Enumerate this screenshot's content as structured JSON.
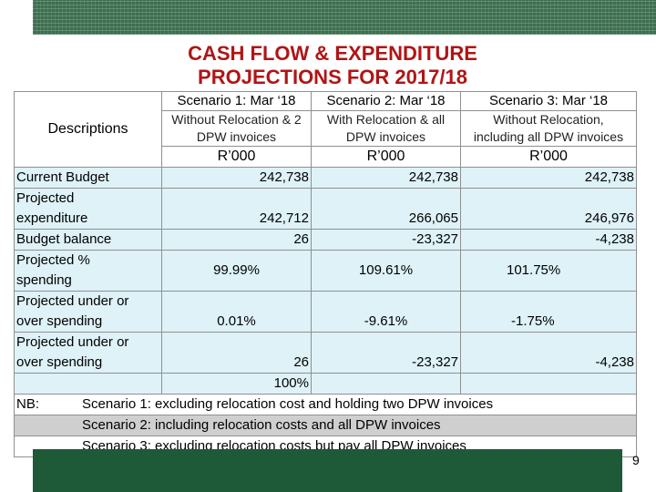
{
  "title_line1": "CASH FLOW & EXPENDITURE",
  "title_line2": "PROJECTIONS FOR 2017/18",
  "descriptions_label": "Descriptions",
  "scenarios": [
    {
      "name": "Scenario 1: Mar ‘18",
      "sub1": "Without Relocation & 2",
      "sub2": "DPW invoices",
      "unit": "R’000"
    },
    {
      "name": "Scenario 2: Mar ‘18",
      "sub1": "With Relocation & all",
      "sub2": "DPW invoices",
      "unit": "R’000"
    },
    {
      "name": "Scenario 3: Mar ‘18",
      "sub1": "Without Relocation,",
      "sub2": "including all DPW invoices",
      "unit": "R’000"
    }
  ],
  "rows": {
    "current_budget": {
      "label": "Current Budget",
      "v1": "242,738",
      "v2": "242,738",
      "v3": "242,738"
    },
    "projected_expenditure": {
      "label1": "Projected",
      "label2": "expenditure",
      "v1": "242,712",
      "v2": "266,065",
      "v3": "246,976"
    },
    "budget_balance": {
      "label": "Budget balance",
      "v1": "26",
      "v2": "-23,327",
      "v3": "-4,238"
    },
    "projected_pct": {
      "label1": "Projected %",
      "label2": "spending",
      "v1": "99.99%",
      "v2": "109.61%",
      "v3": "101.75%"
    },
    "under_over_pct": {
      "label1": "Projected under or",
      "label2": "over spending",
      "v1": "0.01%",
      "v2": "-9.61%",
      "v3": "-1.75%"
    },
    "under_over_val": {
      "label1": "Projected under or",
      "label2": "over spending",
      "v1": "26",
      "v2": "-23,327",
      "v3": "-4,238",
      "extra": "100%"
    }
  },
  "nb": {
    "label": "NB:",
    "line1": "Scenario 1: excluding relocation cost and holding two DPW invoices",
    "line2": "Scenario 2: including relocation costs and all DPW invoices",
    "line3": "Scenario 3: excluding relocation costs but pay all DPW invoices"
  },
  "page_number": "9"
}
